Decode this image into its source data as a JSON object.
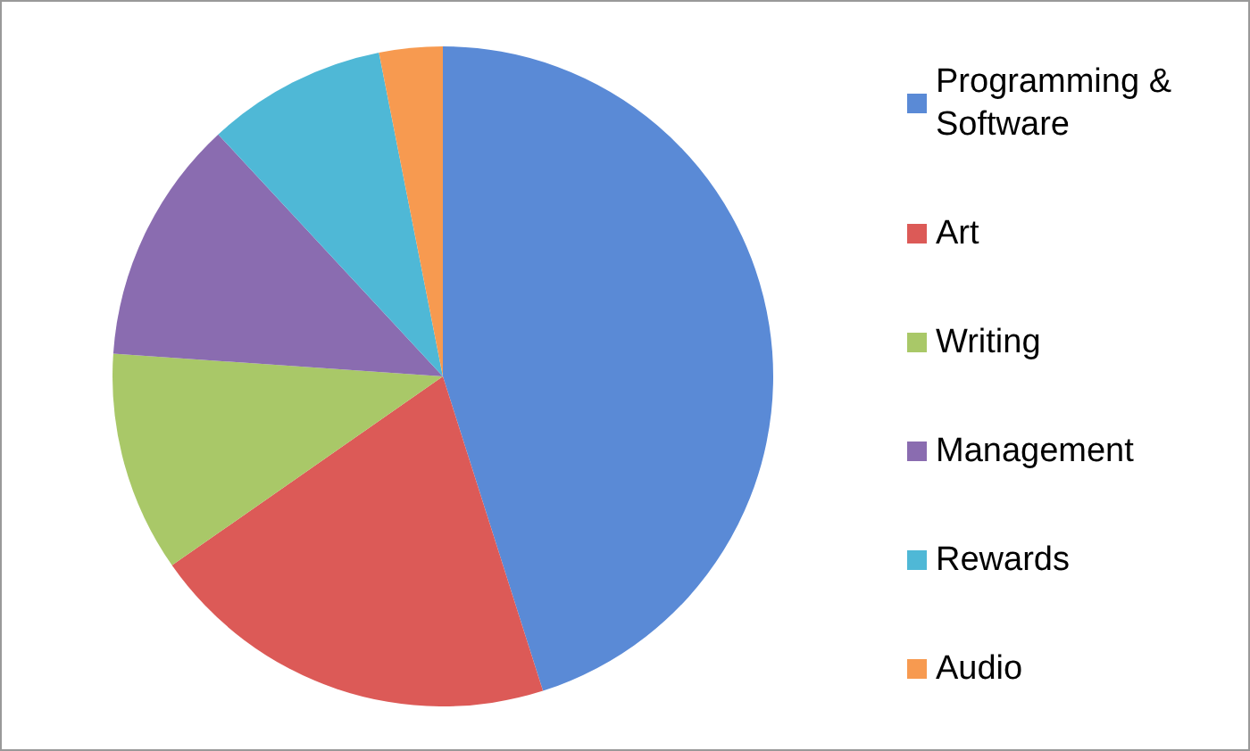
{
  "chart_data": {
    "type": "pie",
    "legend": "right",
    "categories": [
      "Programming & Software",
      "Art",
      "Writing",
      "Management",
      "Rewards",
      "Audio"
    ],
    "values": [
      45.1,
      20.2,
      10.8,
      12,
      8.8,
      3.1
    ],
    "colors": [
      "#5a8ad6",
      "#dc5a57",
      "#a9c868",
      "#8a6cb0",
      "#4fb8d6",
      "#f79a50"
    ]
  }
}
